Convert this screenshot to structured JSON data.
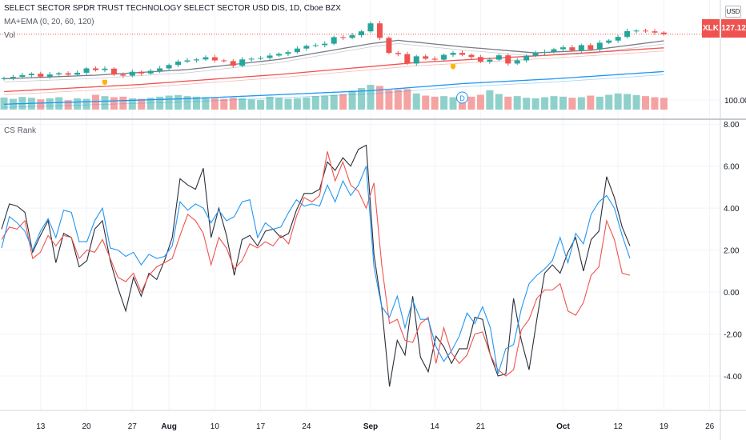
{
  "header": {
    "title": "SELECT SECTOR SPDR TRUST TECHNOLOGY SELECT SECTOR USD DIS, 1D, Cboe BZX",
    "indicator1": "MA+EMA (0, 20, 60, 120)",
    "indicator2": "Vol",
    "currency_button": "USD",
    "symbol_tag": "XLK",
    "last_price": "127.12",
    "collapse_label": "D"
  },
  "colors": {
    "up": "#26a69a",
    "down": "#ef5350",
    "series_black": "#2a2e39",
    "series_red": "#ef5350",
    "series_blue": "#2196f3"
  },
  "price_axis": {
    "labels": [
      "100.00"
    ]
  },
  "chart_data": [
    {
      "type": "candlestick",
      "title": "SELECT SECTOR SPDR TRUST TECHNOLOGY SELECT SECTOR USD DIS, 1D, Cboe BZX",
      "ylim": [
        93,
        132
      ],
      "y_ticks": [
        100
      ],
      "last_price": 127.12,
      "dates": [
        "2020-07-07",
        "2020-07-08",
        "2020-07-09",
        "2020-07-10",
        "2020-07-13",
        "2020-07-14",
        "2020-07-15",
        "2020-07-16",
        "2020-07-17",
        "2020-07-20",
        "2020-07-21",
        "2020-07-22",
        "2020-07-23",
        "2020-07-24",
        "2020-07-27",
        "2020-07-28",
        "2020-07-29",
        "2020-07-30",
        "2020-07-31",
        "2020-08-03",
        "2020-08-04",
        "2020-08-05",
        "2020-08-06",
        "2020-08-07",
        "2020-08-10",
        "2020-08-11",
        "2020-08-12",
        "2020-08-13",
        "2020-08-14",
        "2020-08-17",
        "2020-08-18",
        "2020-08-19",
        "2020-08-20",
        "2020-08-21",
        "2020-08-24",
        "2020-08-25",
        "2020-08-26",
        "2020-08-27",
        "2020-08-28",
        "2020-08-31",
        "2020-09-01",
        "2020-09-02",
        "2020-09-03",
        "2020-09-04",
        "2020-09-08",
        "2020-09-09",
        "2020-09-10",
        "2020-09-11",
        "2020-09-14",
        "2020-09-15",
        "2020-09-16",
        "2020-09-17",
        "2020-09-18",
        "2020-09-21",
        "2020-09-22",
        "2020-09-23",
        "2020-09-24",
        "2020-09-25",
        "2020-09-28",
        "2020-09-29",
        "2020-09-30",
        "2020-10-01",
        "2020-10-02",
        "2020-10-05",
        "2020-10-06",
        "2020-10-07",
        "2020-10-08",
        "2020-10-09",
        "2020-10-12",
        "2020-10-13",
        "2020-10-14",
        "2020-10-15",
        "2020-10-16"
      ],
      "close": [
        109.0,
        109.5,
        110.2,
        110.8,
        109.6,
        110.5,
        111.0,
        110.4,
        111.2,
        113.0,
        112.3,
        112.9,
        110.5,
        110.0,
        111.6,
        110.9,
        112.0,
        113.0,
        114.4,
        115.8,
        116.3,
        116.7,
        117.6,
        116.3,
        116.0,
        114.1,
        116.7,
        117.0,
        117.3,
        118.3,
        119.0,
        119.7,
        121.2,
        122.3,
        122.6,
        123.2,
        125.9,
        125.6,
        126.7,
        128.3,
        131.6,
        125.6,
        119.4,
        118.9,
        115.0,
        118.0,
        117.0,
        116.6,
        118.6,
        119.4,
        118.6,
        117.7,
        115.8,
        116.6,
        118.4,
        115.0,
        116.3,
        118.2,
        119.5,
        119.8,
        120.9,
        121.7,
        120.4,
        122.6,
        120.8,
        123.6,
        124.5,
        126.0,
        128.4,
        128.6,
        128.3,
        127.8,
        127.12
      ],
      "ma": [
        {
          "name": "MA+EMA 20",
          "color": "#787b86",
          "values_at": [
            [
              0,
              108.7
            ],
            [
              10,
              110.2
            ],
            [
              20,
              112.5
            ],
            [
              30,
              116.7
            ],
            [
              40,
              123.2
            ],
            [
              43,
              124.6
            ],
            [
              50,
              121.9
            ],
            [
              58,
              119.4
            ],
            [
              64,
              120.5
            ],
            [
              72,
              124.4
            ]
          ]
        },
        {
          "name": "MA+EMA 60",
          "color": "#ef5350",
          "values_at": [
            [
              0,
              103.4
            ],
            [
              15,
              106.4
            ],
            [
              30,
              110.5
            ],
            [
              45,
              115.4
            ],
            [
              60,
              118.6
            ],
            [
              72,
              121.5
            ]
          ]
        },
        {
          "name": "MA+EMA 120",
          "color": "#2196f3",
          "values_at": [
            [
              0,
              98.2
            ],
            [
              20,
              100.5
            ],
            [
              40,
              103.8
            ],
            [
              50,
              106.7
            ],
            [
              60,
              108.7
            ],
            [
              72,
              111.7
            ]
          ]
        }
      ]
    },
    {
      "type": "bar",
      "title": "Vol",
      "values": [
        45,
        40,
        47,
        44,
        38,
        42,
        46,
        35,
        42,
        40,
        55,
        50,
        46,
        48,
        42,
        40,
        44,
        48,
        52,
        54,
        50,
        48,
        46,
        42,
        40,
        44,
        42,
        38,
        36,
        48,
        44,
        40,
        42,
        45,
        50,
        52,
        55,
        58,
        70,
        80,
        92,
        88,
        72,
        74,
        76,
        60,
        52,
        48,
        50,
        46,
        44,
        48,
        55,
        72,
        58,
        48,
        50,
        44,
        42,
        46,
        50,
        48,
        44,
        46,
        52,
        48,
        55,
        60,
        58,
        54,
        50,
        46,
        44
      ],
      "colors_by_candle": true
    },
    {
      "type": "line",
      "title": "CS Rank",
      "ylim": [
        -5.6,
        8.2
      ],
      "y_ticks": [
        8.0,
        6.0,
        4.0,
        2.0,
        0.0,
        -2.0,
        -4.0
      ],
      "y_tick_labels": [
        "8.00",
        "6.00",
        "4.00",
        "2.00",
        "0.00",
        "-2.00",
        "-4.00"
      ],
      "series": [
        {
          "color": "#2a2e39",
          "values": [
            3.0,
            4.2,
            4.1,
            3.8,
            1.9,
            2.7,
            3.4,
            1.4,
            2.8,
            2.6,
            1.2,
            1.5,
            3.0,
            3.4,
            1.5,
            0.2,
            -0.9,
            0.7,
            -0.2,
            0.9,
            0.6,
            1.5,
            2.6,
            5.4,
            5.1,
            4.9,
            5.9,
            2.6,
            4.0,
            2.7,
            0.8,
            2.5,
            2.7,
            2.2,
            2.9,
            3.0,
            2.6,
            2.8,
            3.9,
            4.7,
            4.7,
            4.9,
            6.2,
            5.8,
            6.4,
            6.0,
            6.8,
            7.0,
            1.8,
            -0.7,
            -4.5,
            -2.3,
            -3.0,
            -0.2,
            -3.1,
            -3.8,
            -2.1,
            -2.6,
            -3.4,
            -2.7,
            -2.7,
            -1.2,
            -1.3,
            -3.0,
            -4.0,
            -3.9,
            -0.3,
            -2.3,
            -3.7,
            -1.3,
            0.9,
            1.3,
            0.9,
            1.9,
            2.6,
            1.0,
            2.5,
            2.9,
            5.5,
            4.5,
            3.1,
            2.2
          ]
        },
        {
          "color": "#ef5350",
          "values": [
            2.5,
            3.1,
            3.0,
            3.4,
            1.6,
            1.9,
            2.7,
            2.2,
            2.7,
            2.6,
            1.6,
            2.0,
            1.9,
            2.5,
            1.6,
            0.7,
            0.5,
            0.9,
            0.0,
            0.8,
            1.2,
            1.4,
            1.6,
            2.7,
            3.7,
            3.4,
            2.8,
            1.3,
            2.6,
            2.1,
            1.1,
            1.5,
            2.3,
            2.1,
            2.4,
            2.2,
            2.7,
            2.3,
            3.6,
            4.5,
            4.3,
            4.6,
            6.7,
            5.3,
            6.2,
            5.1,
            4.8,
            4.0,
            5.2,
            1.3,
            -1.5,
            -1.3,
            -2.3,
            -2.4,
            -1.5,
            -1.2,
            -3.4,
            -1.7,
            -2.9,
            -3.4,
            -3.0,
            -2.0,
            -1.9,
            -3.0,
            -3.7,
            -4.0,
            -3.7,
            -1.8,
            -1.3,
            -0.3,
            0.1,
            0.1,
            0.4,
            -0.9,
            -1.1,
            -0.5,
            0.8,
            1.2,
            3.4,
            2.5,
            0.9,
            0.8
          ]
        },
        {
          "color": "#2196f3",
          "values": [
            2.1,
            3.6,
            3.3,
            2.9,
            2.0,
            2.9,
            3.5,
            2.6,
            3.9,
            3.8,
            2.4,
            2.4,
            3.4,
            4.0,
            2.1,
            2.0,
            1.7,
            1.9,
            1.3,
            1.8,
            1.6,
            1.7,
            2.2,
            4.3,
            3.9,
            4.2,
            4.0,
            3.3,
            3.9,
            3.4,
            3.6,
            4.3,
            4.4,
            2.6,
            3.3,
            3.0,
            3.1,
            3.8,
            4.4,
            4.1,
            4.2,
            4.1,
            5.1,
            4.3,
            5.3,
            4.6,
            5.1,
            6.0,
            1.2,
            -0.7,
            -1.2,
            -0.2,
            -1.7,
            -0.4,
            -1.3,
            -1.3,
            -2.6,
            -3.3,
            -2.8,
            -2.1,
            -1.0,
            -1.5,
            -0.7,
            -1.7,
            -3.9,
            -2.7,
            -2.5,
            -0.8,
            0.4,
            0.8,
            1.1,
            1.5,
            2.6,
            1.4,
            2.8,
            2.3,
            3.7,
            4.3,
            4.6,
            4.0,
            2.7,
            1.6
          ]
        }
      ]
    }
  ],
  "time_axis": {
    "labels": [
      "13",
      "20",
      "27",
      "Aug",
      "10",
      "17",
      "24",
      "Sep",
      "14",
      "21",
      "Oct",
      "12",
      "19",
      "26"
    ],
    "bold": [
      "Aug",
      "Sep",
      "Oct"
    ]
  }
}
